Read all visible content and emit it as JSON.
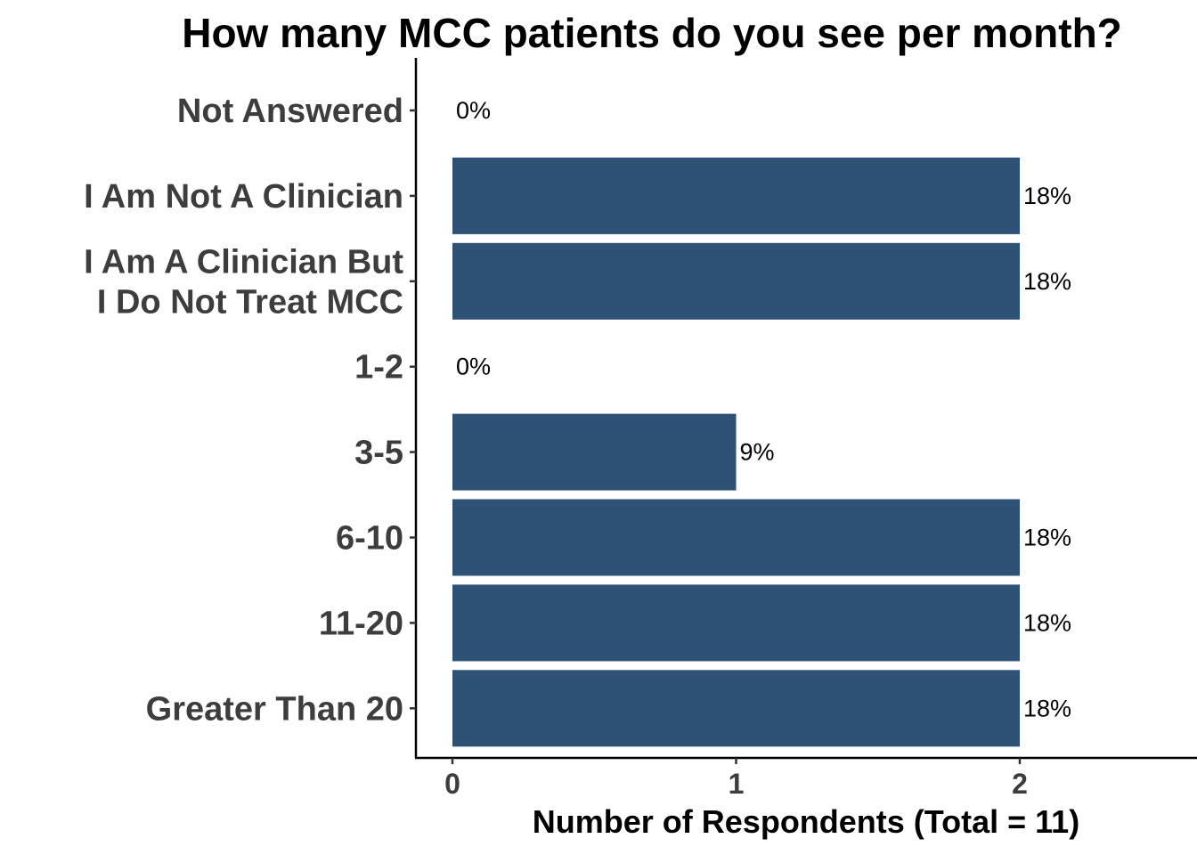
{
  "chart_data": {
    "type": "bar",
    "orientation": "horizontal",
    "title": "How many MCC patients do you see per month?",
    "xlabel": "Number of Respondents (Total = 11)",
    "ylabel": "",
    "categories": [
      [
        "Not Answered"
      ],
      [
        "I Am Not A Clinician"
      ],
      [
        "I Am A Clinician But",
        "I Do Not Treat MCC"
      ],
      [
        "1-2"
      ],
      [
        "3-5"
      ],
      [
        "6-10"
      ],
      [
        "11-20"
      ],
      [
        "Greater Than 20"
      ]
    ],
    "values": [
      0,
      2,
      2,
      0,
      1,
      2,
      2,
      2
    ],
    "data_labels": [
      "0%",
      "18%",
      "18%",
      "0%",
      "9%",
      "18%",
      "18%",
      "18%"
    ],
    "xlim": [
      0,
      2.6
    ],
    "x_ticks": [
      "0",
      "1",
      "2"
    ],
    "bar_color": "#2d5276",
    "grid": false,
    "legend": "none"
  }
}
